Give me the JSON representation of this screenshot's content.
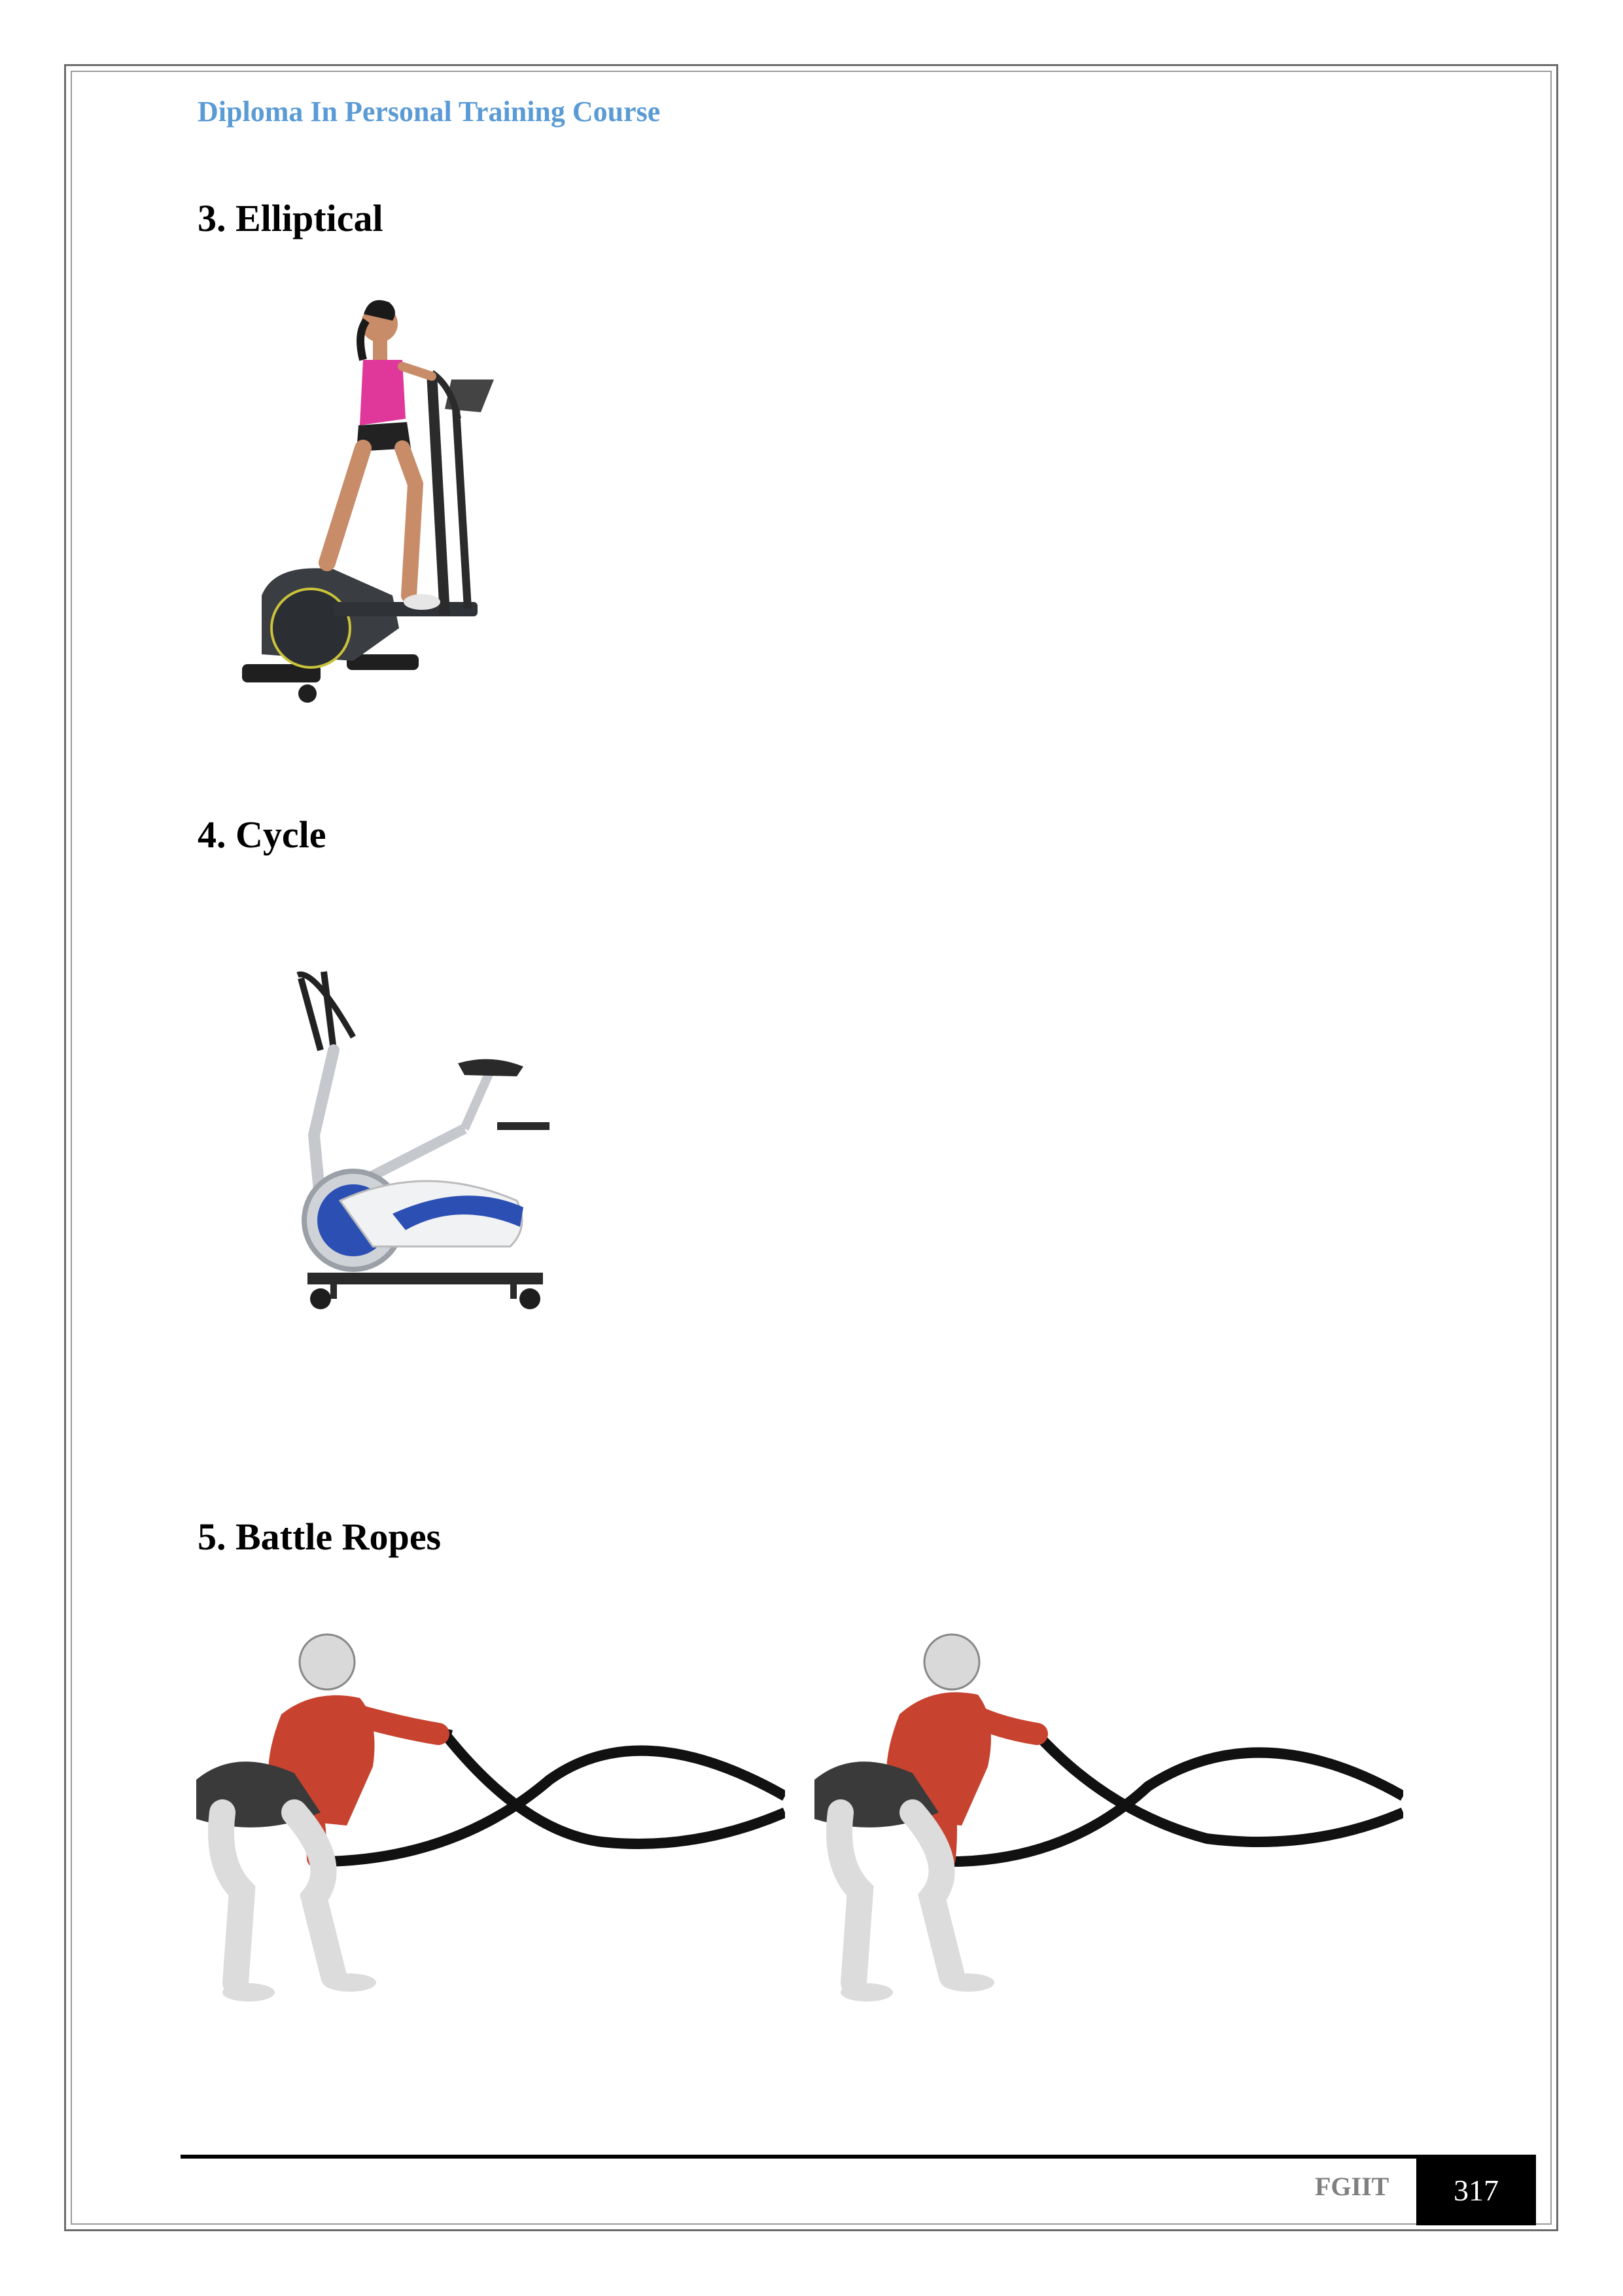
{
  "header": {
    "course_title": "Diploma In Personal Training Course"
  },
  "sections": [
    {
      "heading": "3. Elliptical"
    },
    {
      "heading": "4. Cycle"
    },
    {
      "heading": "5. Battle Ropes"
    }
  ],
  "colors": {
    "header_blue": "#5b9bd5",
    "muscle_red": "#c8432f",
    "bike_blue": "#2b4fb3",
    "top_magenta": "#e0379a"
  },
  "footer": {
    "org": "FGIIT",
    "page_number": "317"
  }
}
